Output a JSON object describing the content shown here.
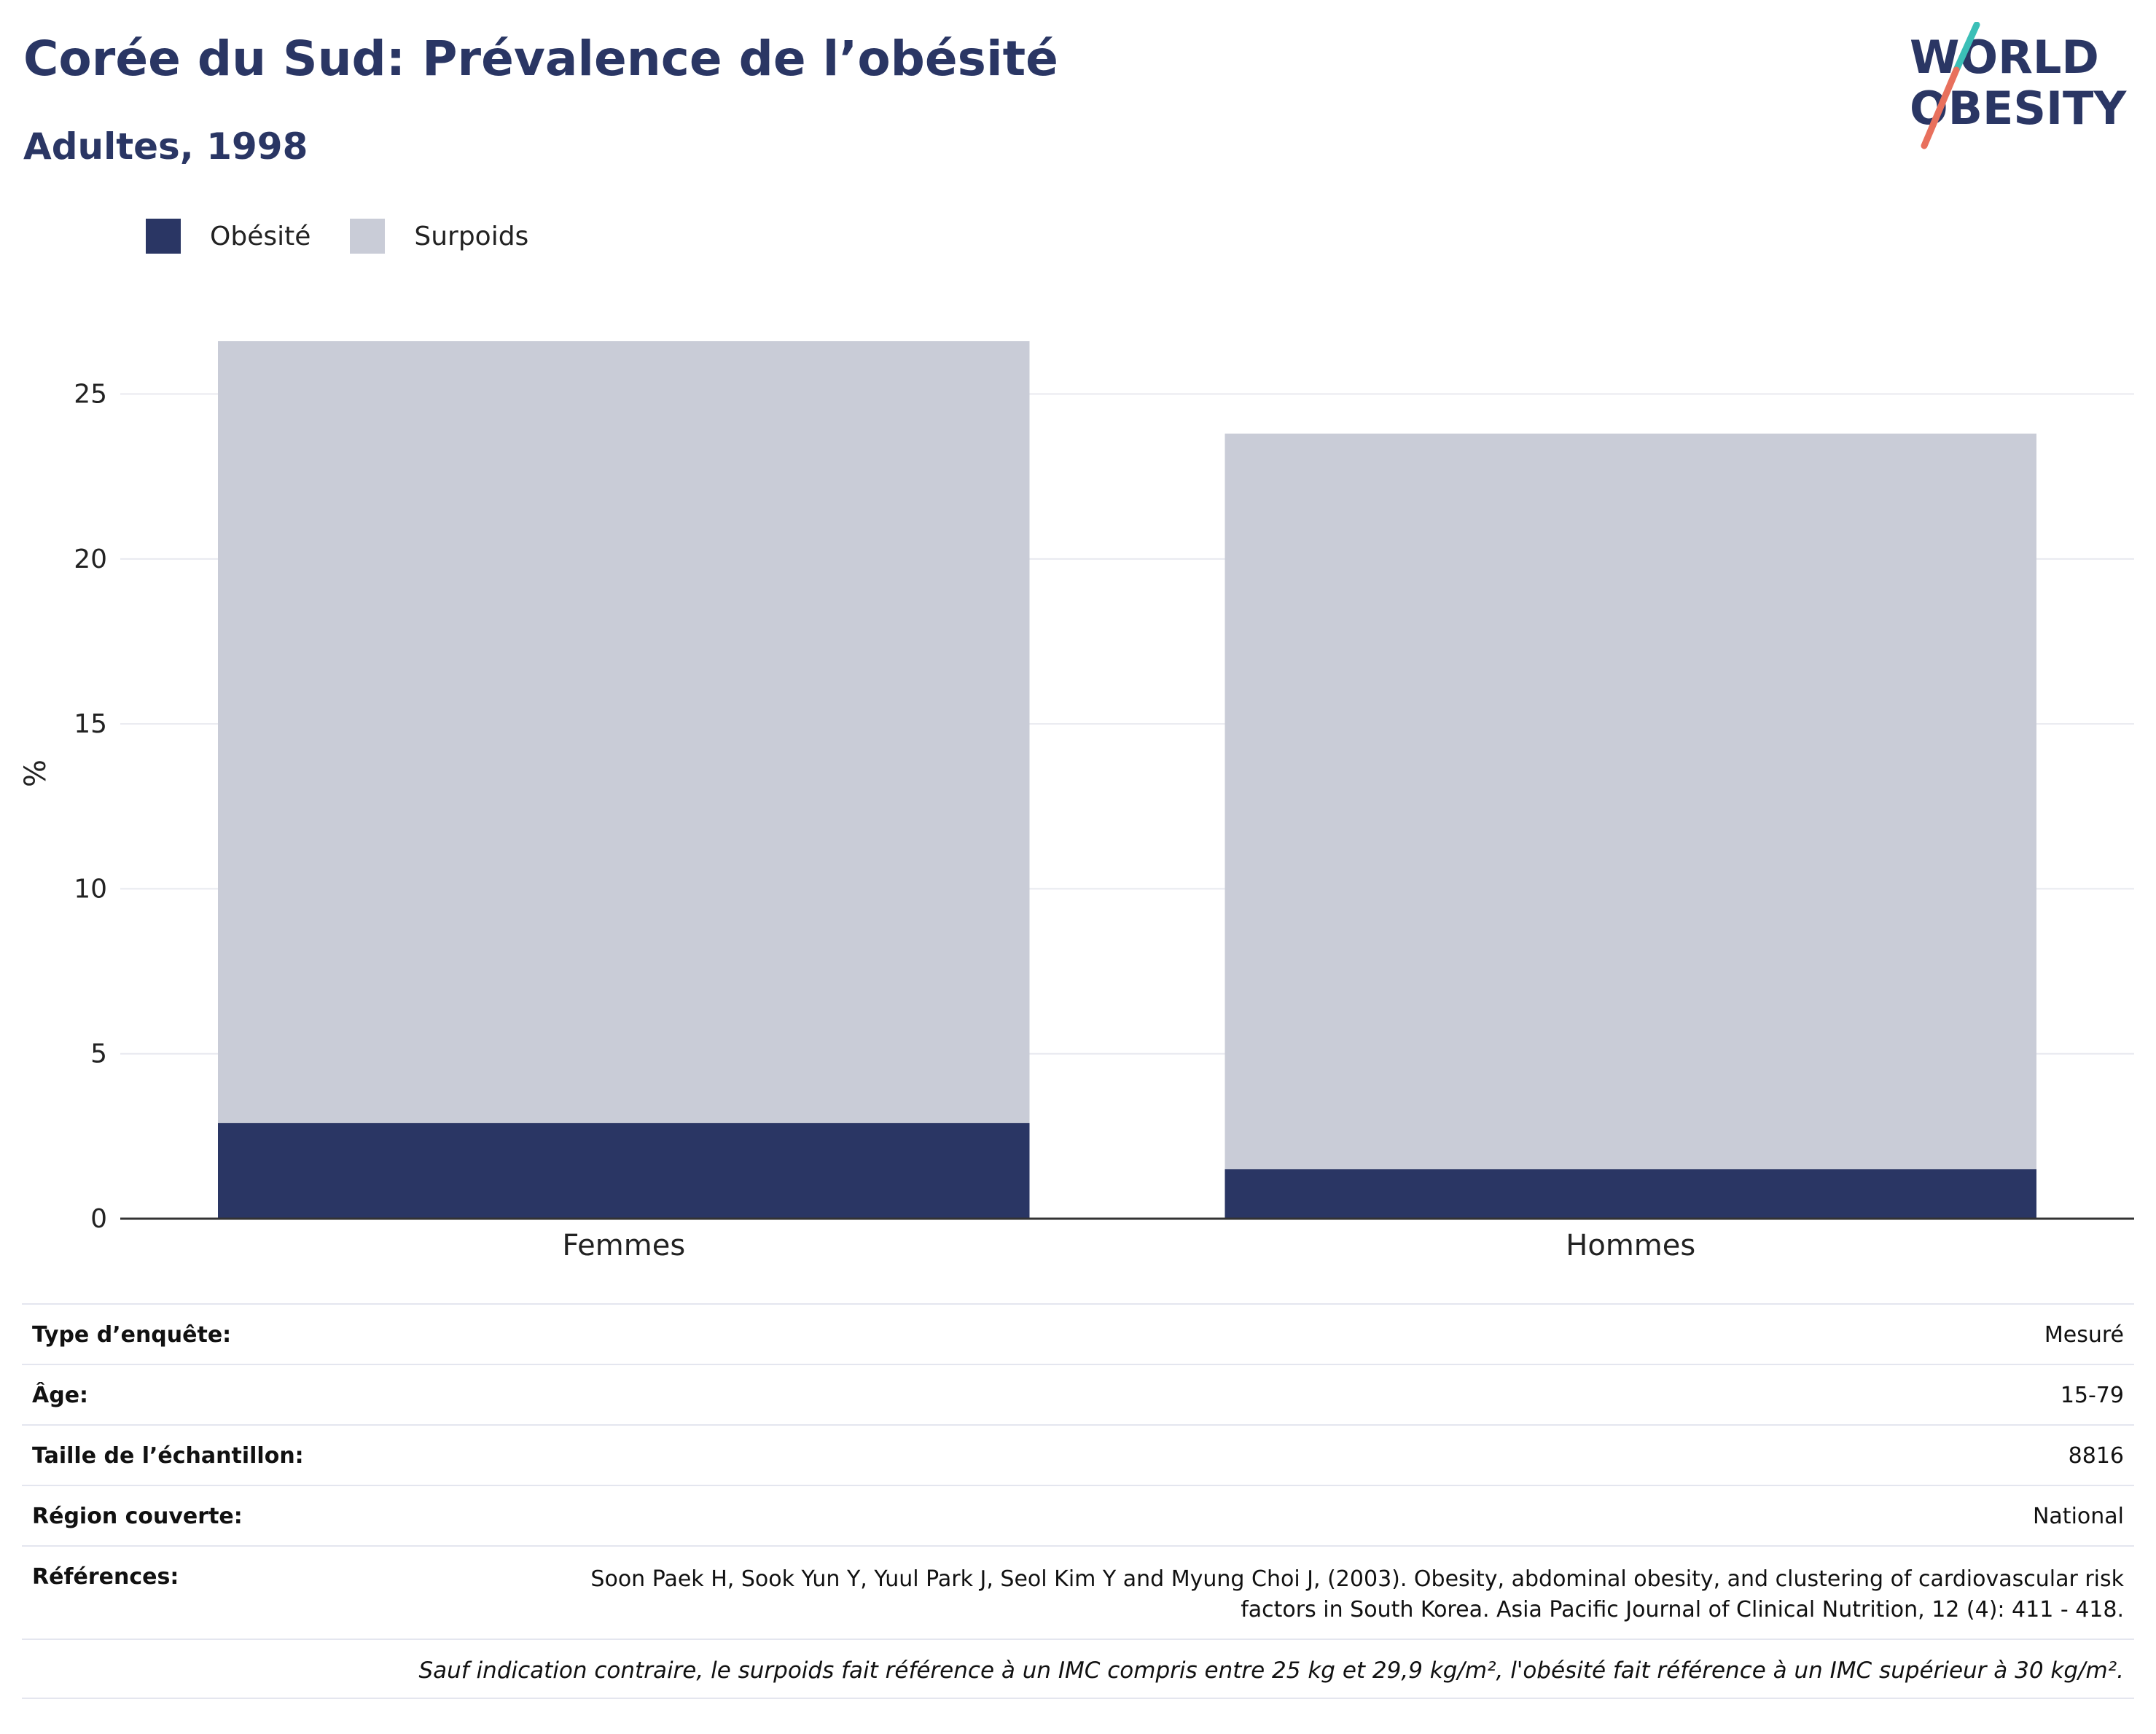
{
  "header": {
    "title": "Corée du Sud: Prévalence de l’obésité",
    "subtitle": "Adultes, 1998"
  },
  "logo": {
    "line1": "WORLD",
    "line2": "OBESITY",
    "colors": {
      "text": "#2a3664",
      "slash_teal": "#3bbfb7",
      "slash_coral": "#e8705d"
    }
  },
  "legend": [
    {
      "label": "Obésité",
      "color": "#2a3664"
    },
    {
      "label": "Surpoids",
      "color": "#c9ccd7"
    }
  ],
  "chart_data": {
    "type": "bar",
    "stacked": true,
    "categories": [
      "Femmes",
      "Hommes"
    ],
    "series": [
      {
        "name": "Obésité",
        "color": "#2a3664",
        "values": [
          2.9,
          1.5
        ]
      },
      {
        "name": "Surpoids",
        "color": "#c9ccd7",
        "values": [
          23.7,
          22.3
        ]
      }
    ],
    "xlabel": "",
    "ylabel": "%",
    "ylim": [
      0,
      27
    ],
    "yticks": [
      0,
      5,
      10,
      15,
      20,
      25
    ],
    "grid": true,
    "legend_position": "top-left"
  },
  "metadata": [
    {
      "label": "Type d’enquête:",
      "value": "Mesuré"
    },
    {
      "label": "Âge:",
      "value": "15-79"
    },
    {
      "label": "Taille de l’échantillon:",
      "value": "8816"
    },
    {
      "label": "Région couverte:",
      "value": "National"
    },
    {
      "label": "Références:",
      "value": "Soon Paek H, Sook Yun Y, Yuul Park J, Seol Kim Y and Myung Choi J, (2003). Obesity, abdominal obesity, and clustering of cardiovascular risk factors in South Korea. Asia Pacific Journal of Clinical Nutrition, 12 (4): 411 - 418."
    }
  ],
  "footnote": "Sauf indication contraire, le surpoids fait référence à un IMC compris entre 25 kg et 29,9 kg/m², l'obésité fait référence à un IMC supérieur à 30 kg/m²."
}
